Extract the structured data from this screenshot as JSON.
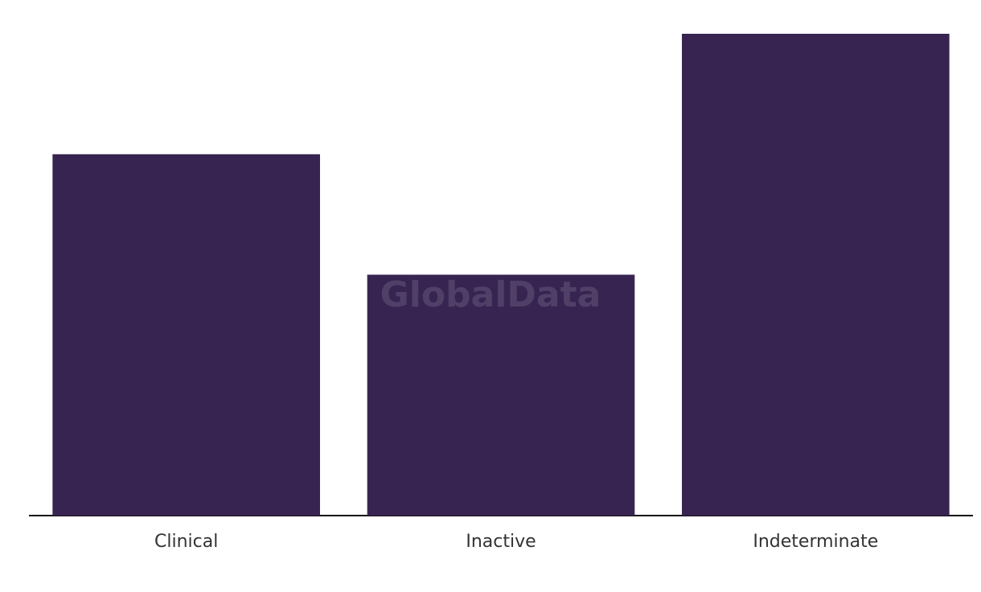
{
  "chart_data": {
    "type": "bar",
    "categories": [
      "Clinical",
      "Inactive",
      "Indeterminate"
    ],
    "values": [
      3,
      2,
      4
    ],
    "color": "#372451",
    "ylim": [
      0,
      4
    ],
    "watermark": "GlobalData"
  }
}
